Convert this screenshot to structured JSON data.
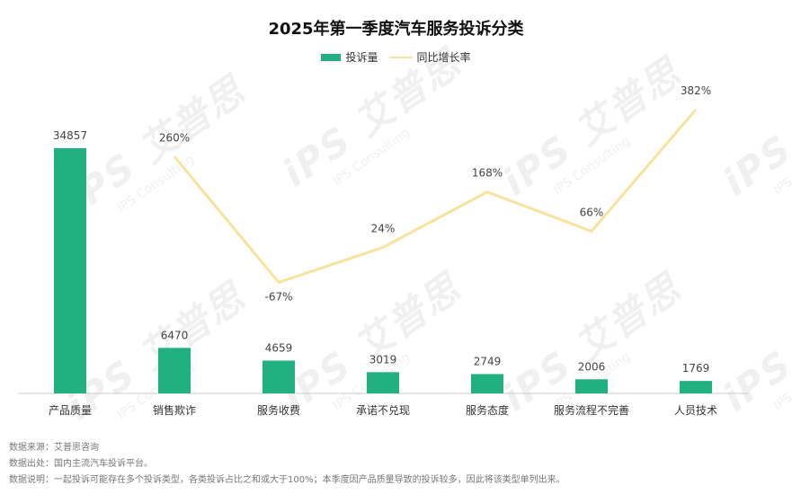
{
  "chart_data": {
    "type": "bar",
    "title": "2025年第一季度汽车服务投诉分类",
    "categories": [
      "产品质量",
      "销售欺诈",
      "服务收费",
      "承诺不兑现",
      "服务态度",
      "服务流程不完善",
      "人员技术"
    ],
    "series": [
      {
        "name": "投诉量",
        "type": "bar",
        "color": "#21b07f",
        "values": [
          34857,
          6470,
          4659,
          3019,
          2749,
          2006,
          1769
        ]
      },
      {
        "name": "同比增长率",
        "type": "line",
        "color": "#f9e29b",
        "values": [
          null,
          260,
          -67,
          24,
          168,
          66,
          382
        ],
        "labels": [
          "",
          "260%",
          "-67%",
          "24%",
          "168%",
          "66%",
          "382%"
        ]
      }
    ],
    "legend_position": "top-center",
    "grid": false
  },
  "notes": [
    "数据来源：艾普思咨询",
    "数据出处：国内主流汽车投诉平台。",
    "数据说明：一起投诉可能存在多个投诉类型，各类投诉占比之和或大于100%；本季度因产品质量导致的投诉较多，因此将该类型单列出来。"
  ],
  "watermark": {
    "mark": "iPS 艾普思",
    "subtitle": "IPS Consulting"
  }
}
